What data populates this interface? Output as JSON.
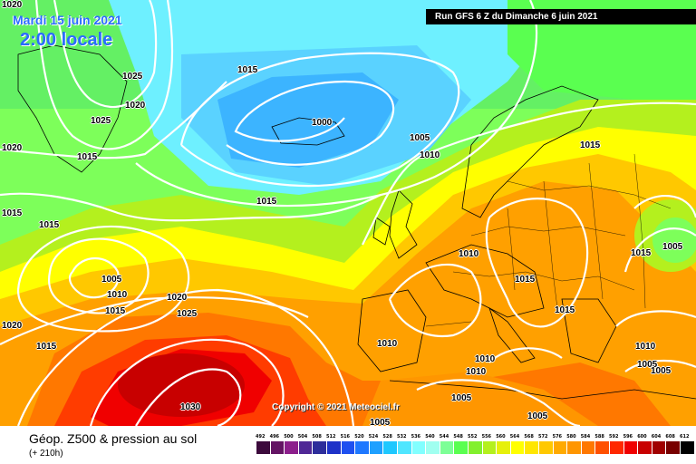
{
  "header": {
    "date": "Mardi 15 juin 2021",
    "time": "2:00 locale",
    "run": "Run GFS 6 Z du Dimanche 6 juin 2021"
  },
  "copyright": "Copyright © 2021 Meteociel.fr",
  "legend": {
    "title": "Géop. Z500 & pression au sol",
    "subtitle": "(+ 210h)",
    "scale_values": [
      "492",
      "496",
      "500",
      "504",
      "508",
      "512",
      "516",
      "520",
      "524",
      "528",
      "532",
      "536",
      "540",
      "544",
      "548",
      "552",
      "556",
      "560",
      "564",
      "568",
      "572",
      "576",
      "580",
      "584",
      "588",
      "592",
      "596",
      "600",
      "604",
      "608",
      "612"
    ],
    "scale_colors": [
      "#3c0a3c",
      "#641464",
      "#8c1e8c",
      "#502896",
      "#2d2d9b",
      "#1e32c8",
      "#1e50f0",
      "#1e78ff",
      "#1ea0ff",
      "#1ec8ff",
      "#50e6ff",
      "#82ffff",
      "#a0fff0",
      "#7dff96",
      "#5aff50",
      "#82f02d",
      "#b4f01e",
      "#e6f00a",
      "#ffff00",
      "#ffe600",
      "#ffc800",
      "#ffaa00",
      "#ff9600",
      "#ff7800",
      "#ff5000",
      "#ff2800",
      "#f00000",
      "#c80000",
      "#a00000",
      "#780000",
      "#000000"
    ]
  },
  "isobar_labels": [
    {
      "text": "1020"
    },
    {
      "text": "1015"
    },
    {
      "text": "1025"
    },
    {
      "text": "1020"
    },
    {
      "text": "1025"
    },
    {
      "text": "1020"
    },
    {
      "text": "1015"
    },
    {
      "text": "1000"
    },
    {
      "text": "1005"
    },
    {
      "text": "1010"
    },
    {
      "text": "1015"
    },
    {
      "text": "1015"
    },
    {
      "text": "1015"
    },
    {
      "text": "1015"
    },
    {
      "text": "1005"
    },
    {
      "text": "1010"
    },
    {
      "text": "1015"
    },
    {
      "text": "1020"
    },
    {
      "text": "1025"
    },
    {
      "text": "1020"
    },
    {
      "text": "1015"
    },
    {
      "text": "1030"
    },
    {
      "text": "1010"
    },
    {
      "text": "1015"
    },
    {
      "text": "1015"
    },
    {
      "text": "1010"
    },
    {
      "text": "1010"
    },
    {
      "text": "1010"
    },
    {
      "text": "1005"
    },
    {
      "text": "1005"
    },
    {
      "text": "1005"
    },
    {
      "text": "1010"
    },
    {
      "text": "1005"
    },
    {
      "text": "1005"
    },
    {
      "text": "1005"
    },
    {
      "text": "1015"
    }
  ]
}
